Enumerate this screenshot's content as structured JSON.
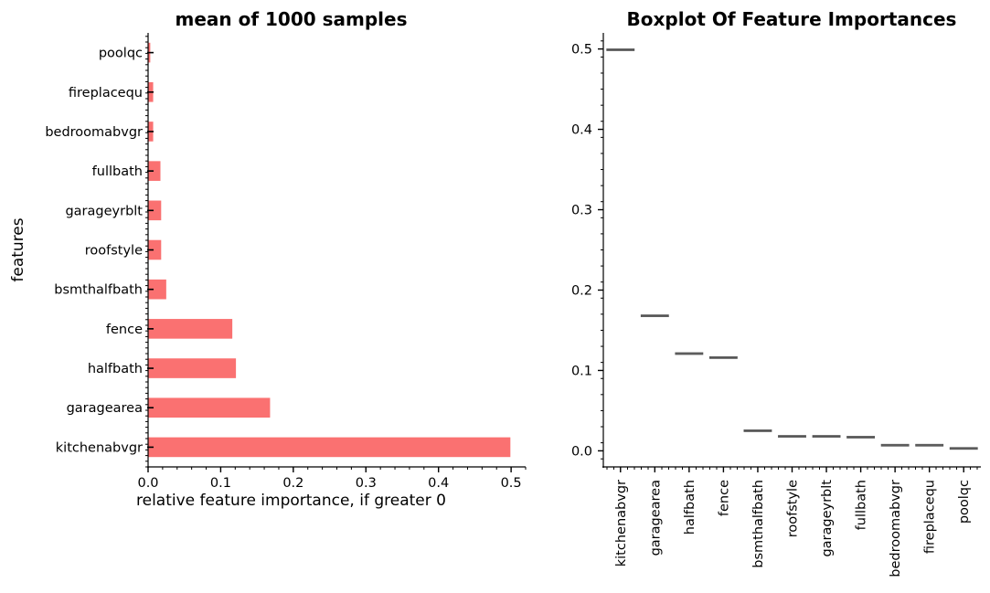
{
  "figure": {
    "background": "#ffffff"
  },
  "chart_data": [
    {
      "type": "bar",
      "orientation": "horizontal",
      "title": "mean of 1000 samples",
      "xlabel": "relative feature importance, if greater 0",
      "ylabel": "features",
      "categories": [
        "kitchenabvgr",
        "garagearea",
        "halfbath",
        "fence",
        "bsmthalfbath",
        "roofstyle",
        "garageyrblt",
        "fullbath",
        "bedroomabvgr",
        "fireplacequ",
        "poolqc"
      ],
      "values": [
        0.499,
        0.168,
        0.121,
        0.116,
        0.025,
        0.018,
        0.018,
        0.017,
        0.007,
        0.007,
        0.003
      ],
      "xlim": [
        0,
        0.52
      ],
      "xticks": [
        "0.0",
        "0.1",
        "0.2",
        "0.3",
        "0.4",
        "0.5"
      ],
      "bar_color": "#fa7171",
      "grid": false
    },
    {
      "type": "boxplot",
      "title": "Boxplot Of Feature Importances",
      "categories": [
        "kitchenabvgr",
        "garagearea",
        "halfbath",
        "fence",
        "bsmthalfbath",
        "roofstyle",
        "garageyrblt",
        "fullbath",
        "bedroomabvgr",
        "fireplacequ",
        "poolqc"
      ],
      "values": [
        0.499,
        0.168,
        0.121,
        0.116,
        0.025,
        0.018,
        0.018,
        0.017,
        0.007,
        0.007,
        0.003
      ],
      "ylim": [
        -0.02,
        0.52
      ],
      "yticks": [
        "0.0",
        "0.1",
        "0.2",
        "0.3",
        "0.4",
        "0.5"
      ],
      "box_color": "#555555",
      "grid": false
    }
  ]
}
